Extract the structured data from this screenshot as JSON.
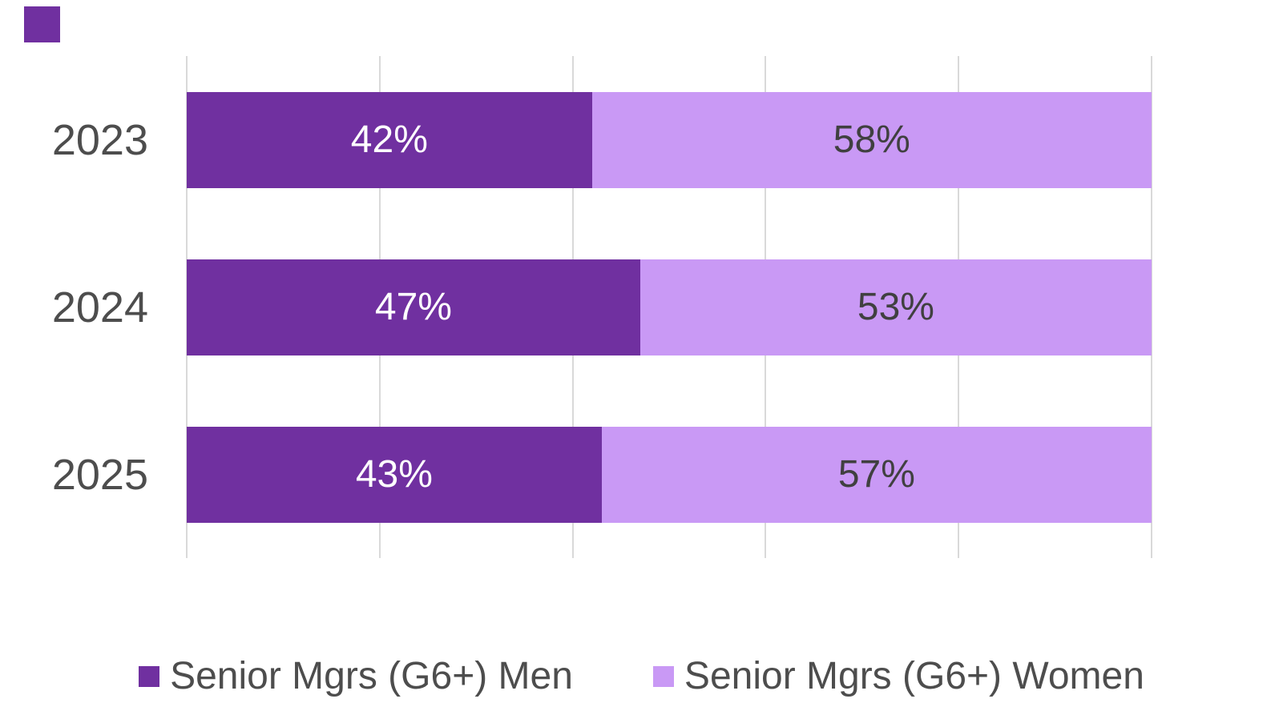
{
  "chart_data": {
    "type": "bar",
    "orientation": "horizontal",
    "stacked": true,
    "title": "",
    "categories": [
      "2023",
      "2024",
      "2025"
    ],
    "series": [
      {
        "name": "Senior Mgrs (G6+) Men",
        "key": "men",
        "color": "#7030A0",
        "label_color": "#FFFFFF",
        "values": [
          42,
          47,
          43
        ]
      },
      {
        "name": "Senior Mgrs (G6+) Women",
        "key": "women",
        "color": "#C999F5",
        "label_color": "#404040",
        "values": [
          58,
          53,
          57
        ]
      }
    ],
    "value_suffix": "%",
    "xlim": [
      0,
      100
    ],
    "gridline_percents": [
      0,
      20,
      40,
      60,
      80,
      100
    ],
    "grid": true,
    "legend_position": "bottom"
  },
  "styles": {
    "background": "#FFFFFF",
    "gridline_color": "#D9D9D9",
    "category_label_color": "#4D4D4D",
    "legend_text_color": "#4D4D4D",
    "accent_square_color": "#7030A0"
  }
}
